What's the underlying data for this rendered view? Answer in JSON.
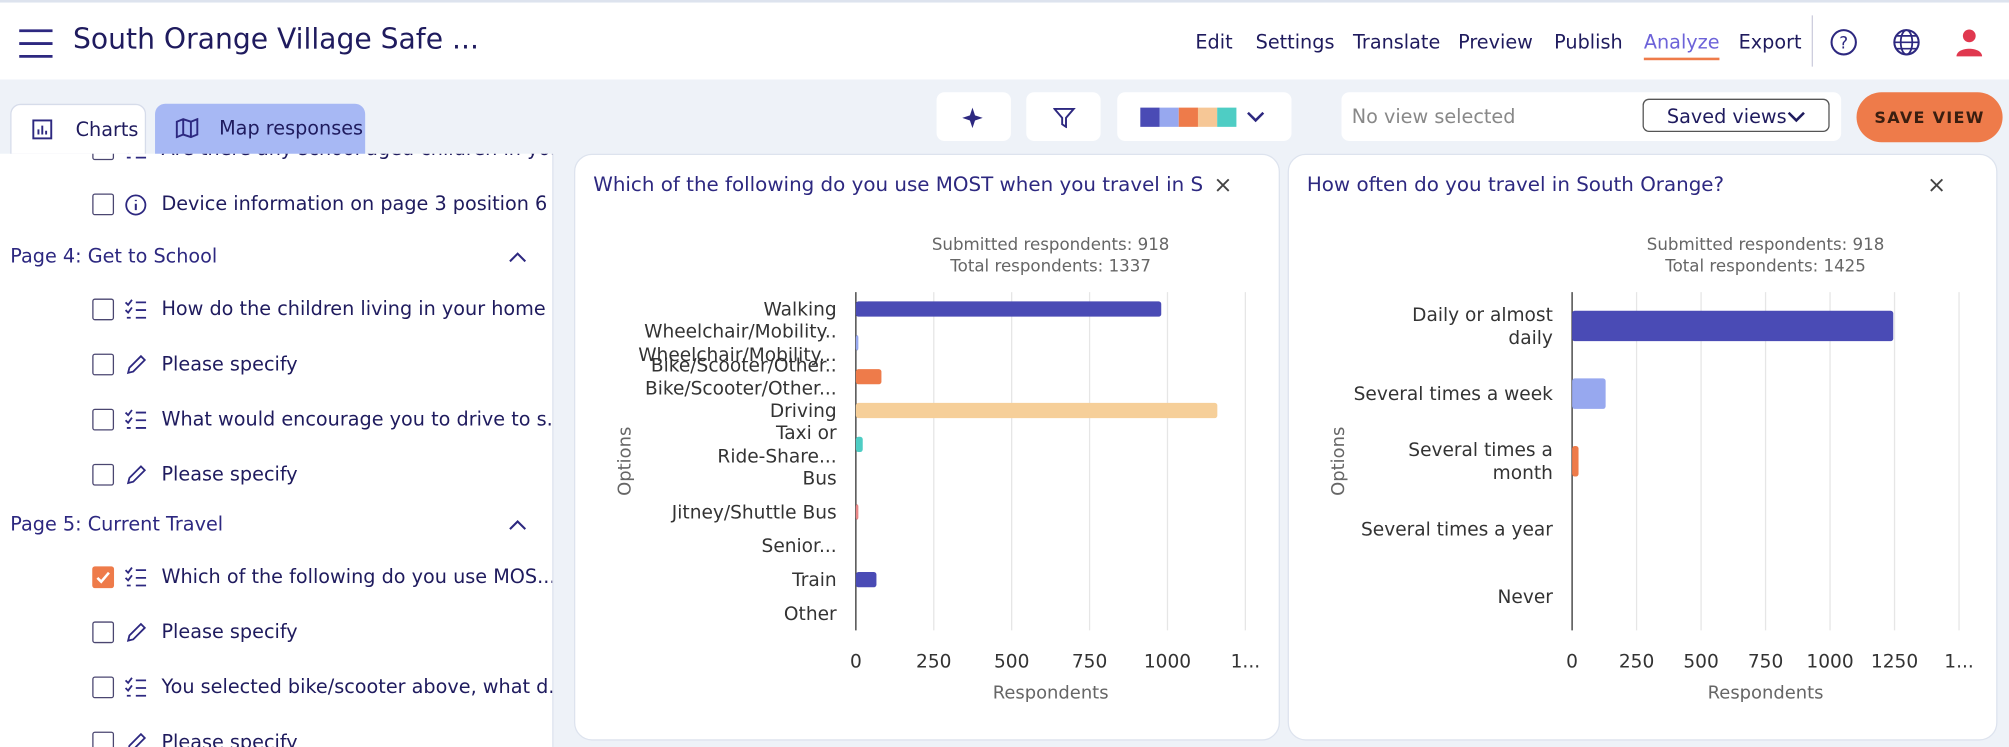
{
  "header": {
    "title": "South Orange Village Safe ...",
    "nav": [
      "Edit",
      "Settings",
      "Translate",
      "Preview",
      "Publish",
      "Analyze",
      "Export"
    ],
    "active_nav": 5
  },
  "tabs": [
    "Charts",
    "Map responses"
  ],
  "toolbar": {
    "view_placeholder": "No view selected",
    "saved_views": "Saved views",
    "save_button": "SAVE VIEW",
    "palette": [
      "#4a4bb5",
      "#97a8ef",
      "#ee7b4a",
      "#f6c796",
      "#4ecdc4"
    ]
  },
  "sidebar": {
    "top_items": [
      {
        "label": "Are there any school aged children in yo...",
        "icon": "list"
      },
      {
        "label": "Device information on page 3 position 6",
        "icon": "info"
      }
    ],
    "sections": [
      {
        "title": "Page 4: Get to School",
        "items": [
          {
            "label": "How do the children living in your home ...",
            "icon": "list"
          },
          {
            "label": "Please specify",
            "icon": "pencil"
          },
          {
            "label": "What would encourage you to drive to s...",
            "icon": "list"
          },
          {
            "label": "Please specify",
            "icon": "pencil"
          }
        ]
      },
      {
        "title": "Page 5: Current Travel",
        "items": [
          {
            "label": "Which of the following do you use MOS...",
            "icon": "list",
            "checked": true
          },
          {
            "label": "Please specify",
            "icon": "pencil"
          },
          {
            "label": "You selected bike/scooter above, what d...",
            "icon": "list"
          },
          {
            "label": "Please specify",
            "icon": "pencil"
          }
        ]
      }
    ]
  },
  "chart_data": [
    {
      "type": "hbar",
      "title": "Which of the following do you use MOST when you travel in S",
      "subtitle": [
        "Submitted respondents: 918",
        "Total respondents: 1337"
      ],
      "ylabel": "Options",
      "xlabel": "Respondents",
      "categories": [
        "Walking",
        "Wheelchair/Mobility...",
        "Bike/Scooter/Other...",
        "Driving",
        "Taxi or Ride-Share...",
        "Bus",
        "Jitney/Shuttle Bus",
        "Senior...",
        "Train",
        "Other"
      ],
      "values": [
        980,
        8,
        82,
        1160,
        22,
        0,
        8,
        0,
        66,
        0
      ],
      "colors": [
        "#4a4bb5",
        "#97a8ef",
        "#ee7b4a",
        "#f6cf99",
        "#4ecdc4",
        "#8fd3a0",
        "#e98686",
        "#c7a4e6",
        "#4a4bb5",
        "#97a8ef"
      ],
      "xlim": [
        0,
        1250
      ],
      "xticks": [
        0,
        250,
        500,
        750,
        1000,
        {
          "value": 1250,
          "label": "1..."
        }
      ],
      "grid": true
    },
    {
      "type": "hbar",
      "title": "How often do you travel in South Orange?",
      "subtitle": [
        "Submitted respondents: 918",
        "Total respondents: 1425"
      ],
      "ylabel": "Options",
      "xlabel": "Respondents",
      "categories": [
        "Daily or almost daily",
        "Several times a week",
        "Several times a month",
        "Several times a year",
        "Never"
      ],
      "values": [
        1245,
        130,
        25,
        0,
        0
      ],
      "colors": [
        "#4a4bb5",
        "#97a8ef",
        "#ee7b4a",
        "#f6cf99",
        "#4ecdc4"
      ],
      "xlim": [
        0,
        1500
      ],
      "xticks": [
        0,
        250,
        500,
        750,
        1000,
        1250,
        {
          "value": 1500,
          "label": "1..."
        }
      ],
      "grid": true
    }
  ]
}
